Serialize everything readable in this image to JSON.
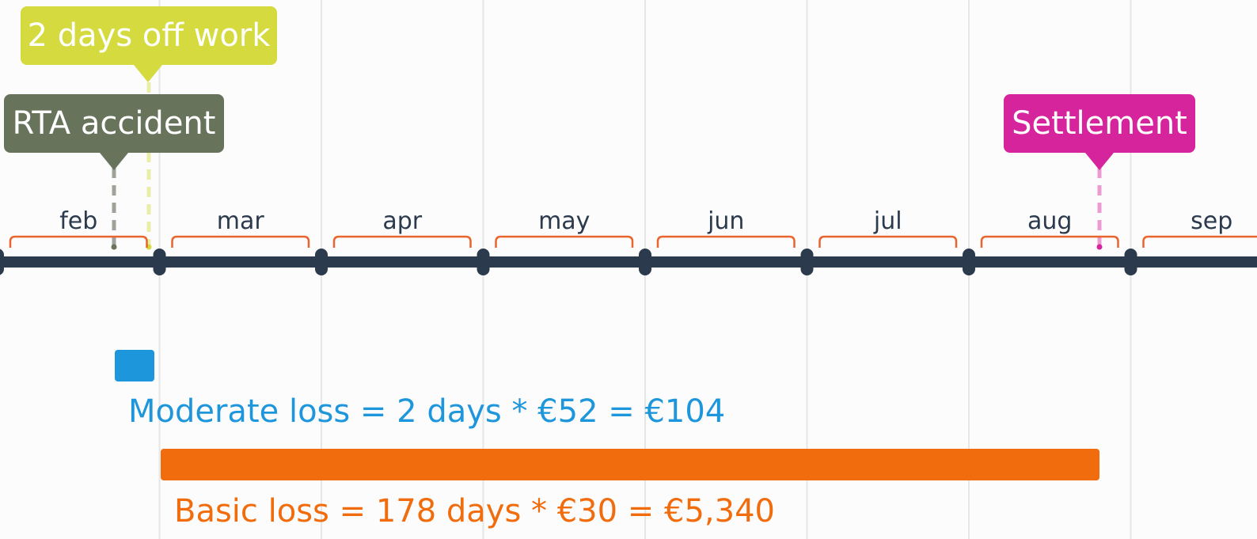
{
  "months": [
    "feb",
    "mar",
    "apr",
    "may",
    "jun",
    "jul",
    "aug",
    "sep"
  ],
  "events": {
    "off_work": {
      "label": "2 days off work",
      "color": "#d5db3f"
    },
    "accident": {
      "label": "RTA accident",
      "color": "#68735b"
    },
    "settlement": {
      "label": "Settlement",
      "color": "#d6259c"
    }
  },
  "losses": {
    "moderate": {
      "label": "Moderate loss = 2 days * €52 = €104",
      "color": "#1e96dc"
    },
    "basic": {
      "label": "Basic loss = 178 days * €30 = €5,340",
      "color": "#f06c0c"
    }
  },
  "colors": {
    "axis": "#2b3a4d",
    "month_brace": "#e8652e",
    "month_text": "#2b3a4d",
    "gridline": "#e6e6e6"
  }
}
